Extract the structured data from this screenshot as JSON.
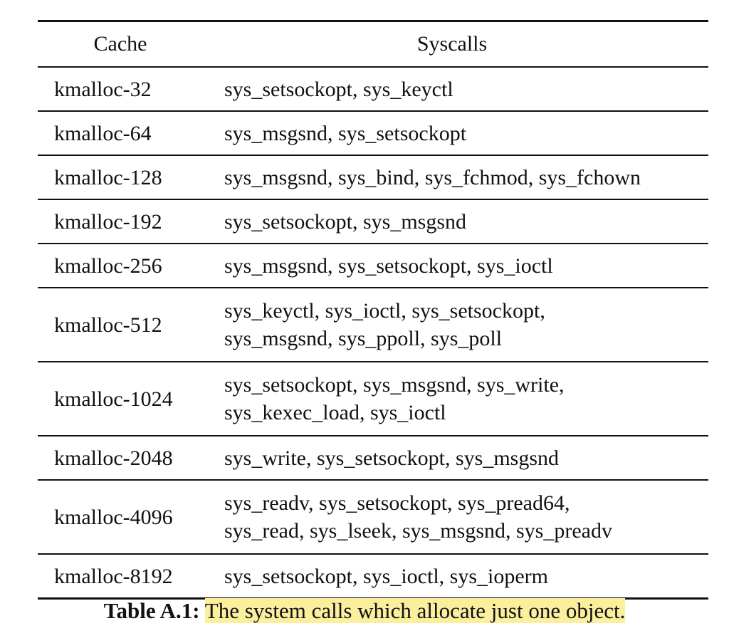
{
  "table": {
    "headers": [
      "Cache",
      "Syscalls"
    ],
    "rows": [
      {
        "cache": "kmalloc-32",
        "syscalls": [
          "sys_setsockopt, sys_keyctl"
        ]
      },
      {
        "cache": "kmalloc-64",
        "syscalls": [
          "sys_msgsnd, sys_setsockopt"
        ]
      },
      {
        "cache": "kmalloc-128",
        "syscalls": [
          "sys_msgsnd, sys_bind, sys_fchmod, sys_fchown"
        ]
      },
      {
        "cache": "kmalloc-192",
        "syscalls": [
          "sys_setsockopt, sys_msgsnd"
        ]
      },
      {
        "cache": "kmalloc-256",
        "syscalls": [
          "sys_msgsnd, sys_setsockopt, sys_ioctl"
        ]
      },
      {
        "cache": "kmalloc-512",
        "syscalls": [
          "sys_keyctl, sys_ioctl, sys_setsockopt,",
          "sys_msgsnd, sys_ppoll, sys_poll"
        ]
      },
      {
        "cache": "kmalloc-1024",
        "syscalls": [
          "sys_setsockopt, sys_msgsnd, sys_write,",
          "sys_kexec_load, sys_ioctl"
        ]
      },
      {
        "cache": "kmalloc-2048",
        "syscalls": [
          "sys_write, sys_setsockopt, sys_msgsnd"
        ]
      },
      {
        "cache": "kmalloc-4096",
        "syscalls": [
          "sys_readv, sys_setsockopt, sys_pread64,",
          "sys_read, sys_lseek, sys_msgsnd, sys_preadv"
        ]
      },
      {
        "cache": "kmalloc-8192",
        "syscalls": [
          "sys_setsockopt, sys_ioctl, sys_ioperm"
        ]
      }
    ]
  },
  "caption": {
    "label": "Table A.1:",
    "text": "The system calls which allocate just one object.",
    "highlight_color": "#fbef9e"
  }
}
